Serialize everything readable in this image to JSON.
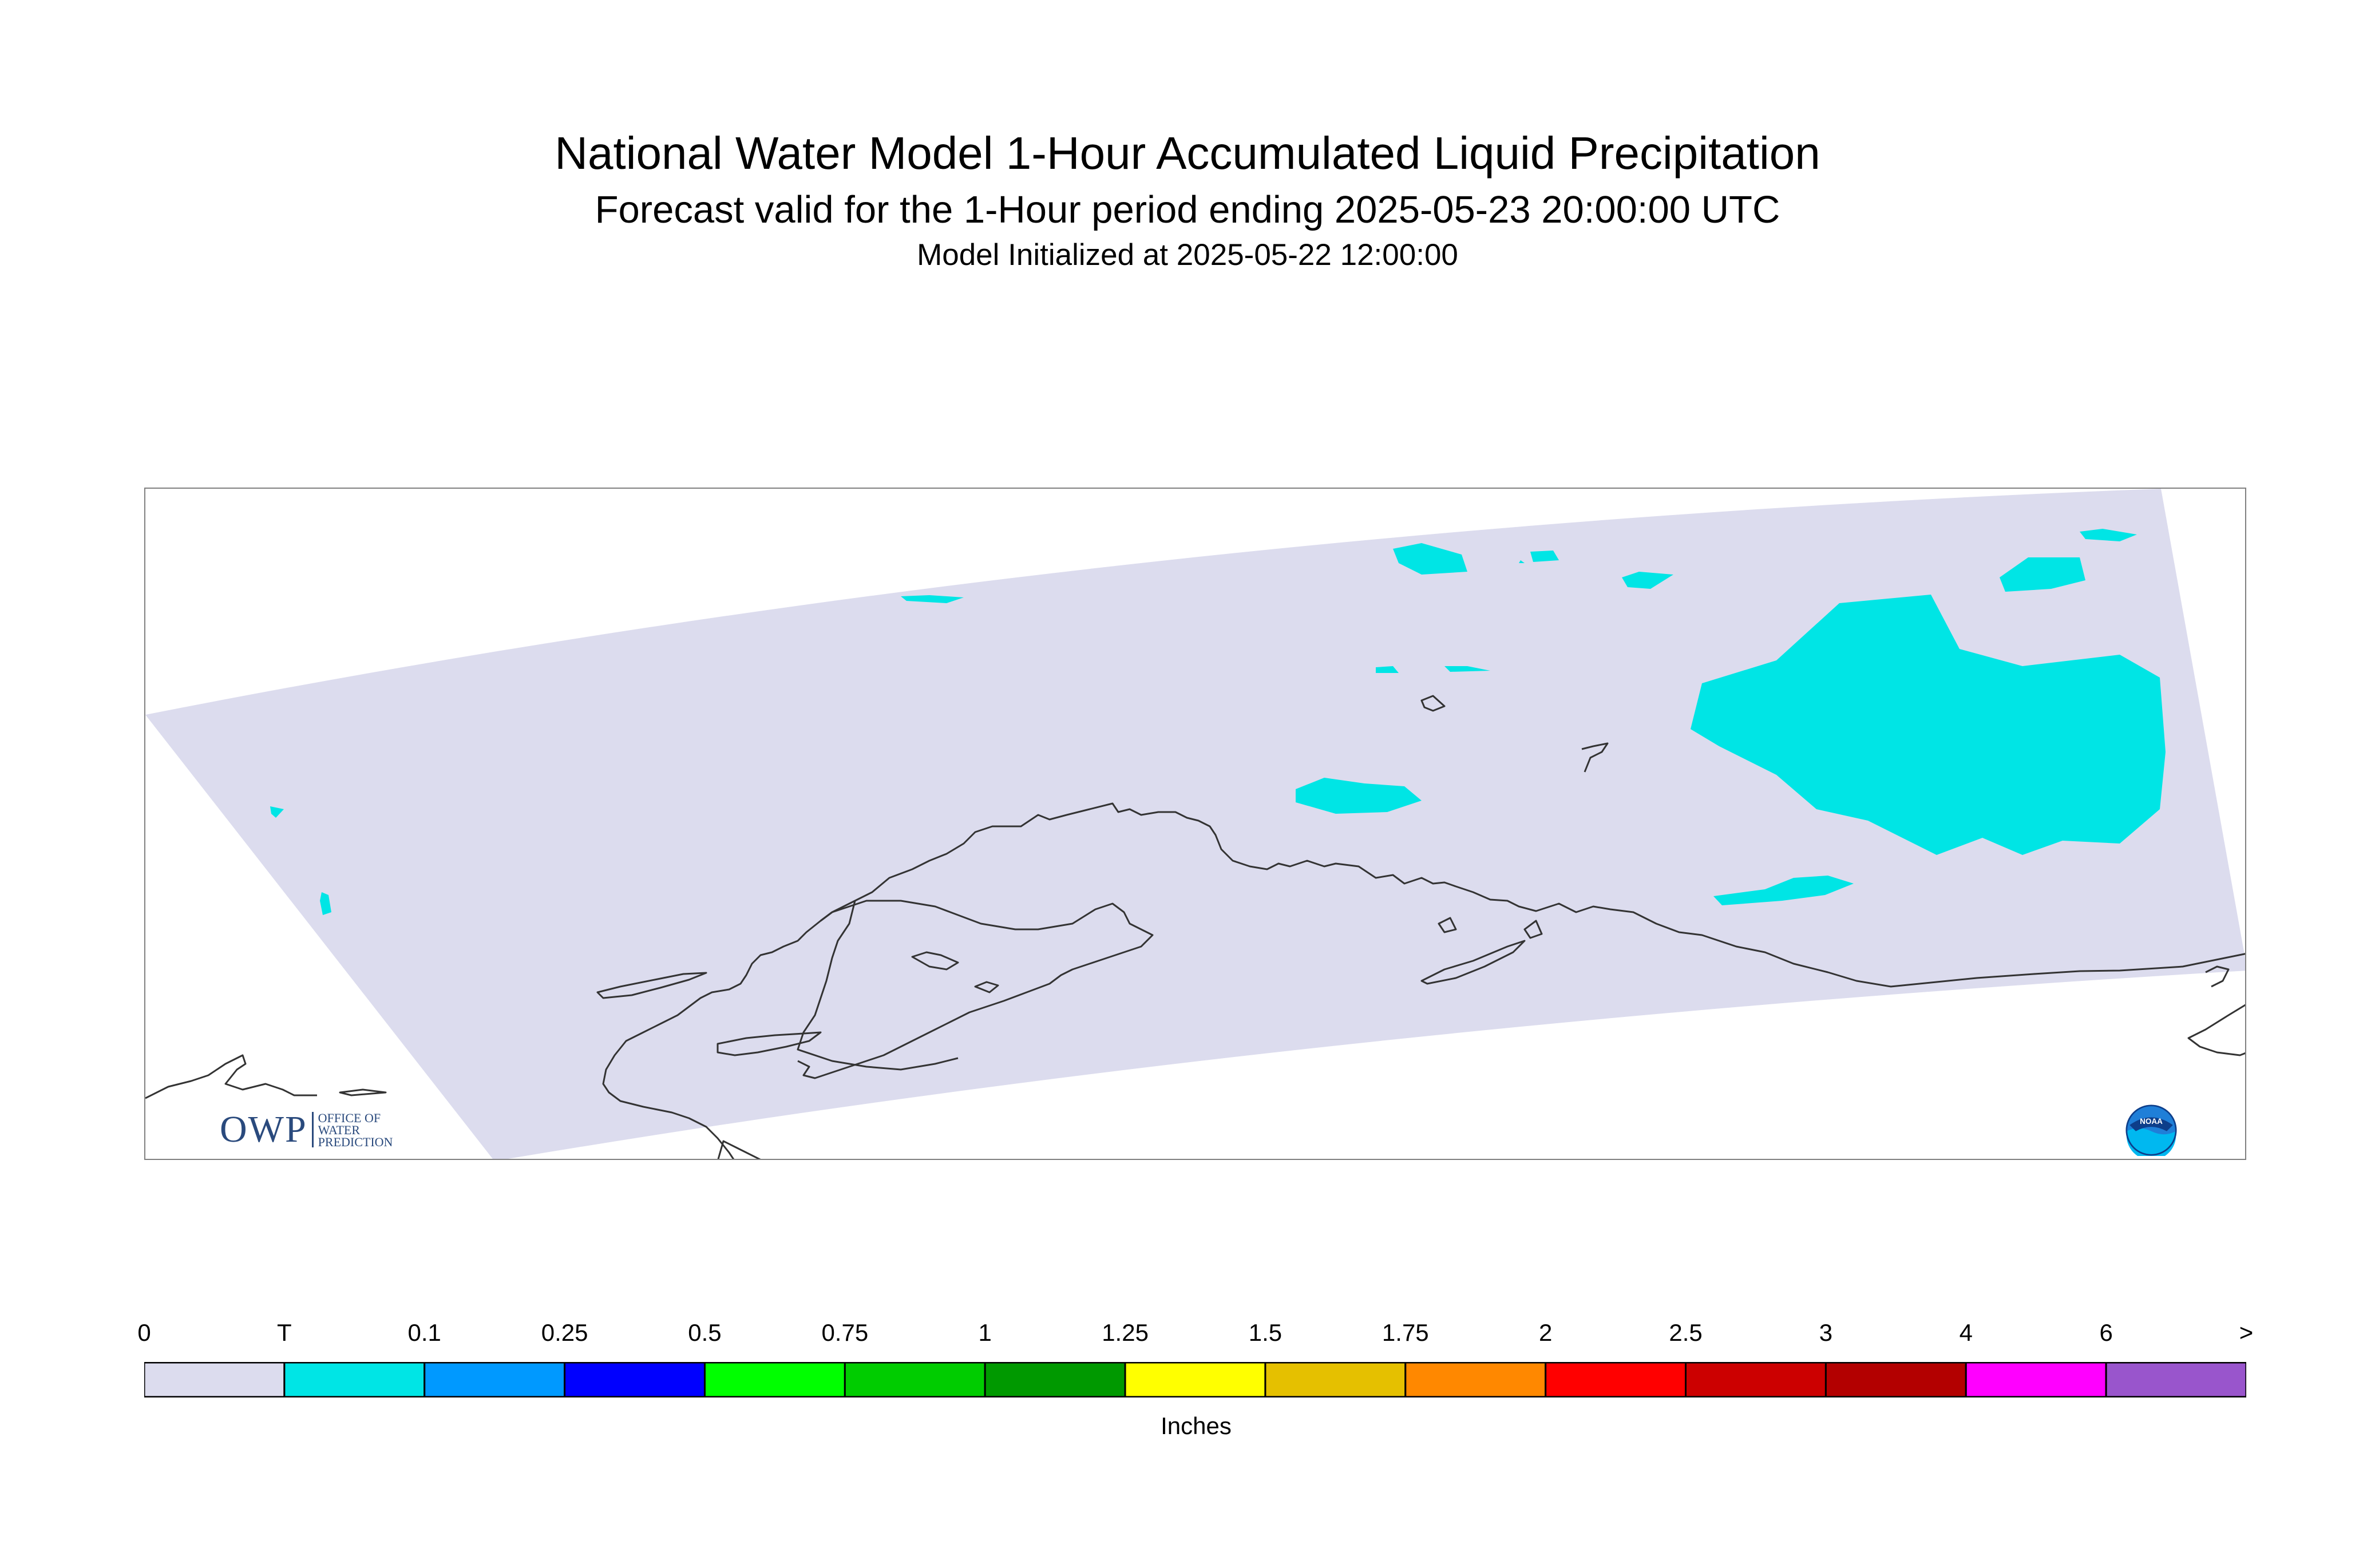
{
  "header": {
    "title": "National Water Model 1-Hour Accumulated Liquid Precipitation",
    "subtitle": "Forecast valid for the 1-Hour period ending 2025-05-23 20:00:00 UTC",
    "init_line": "Model Initialized at 2025-05-22 12:00:00"
  },
  "legend": {
    "units": "Inches",
    "ticks": [
      "0",
      "T",
      "0.1",
      "0.25",
      "0.5",
      "0.75",
      "1",
      "1.25",
      "1.5",
      "1.75",
      "2",
      "2.5",
      "3",
      "4",
      "6",
      ">"
    ],
    "colors": [
      "#dcdcee",
      "#00e5e5",
      "#0099ff",
      "#0000ff",
      "#00ff00",
      "#00cc00",
      "#009900",
      "#ffff00",
      "#e5c000",
      "#ff8800",
      "#ff0000",
      "#cc0000",
      "#b30000",
      "#ff00ff",
      "#9955cc"
    ]
  },
  "map": {
    "domain_fill": "#dcdcee",
    "precip_color": "#00e5e5",
    "coastline_color": "#333333"
  },
  "logos": {
    "owp_mark": "OWP",
    "owp_text": [
      "OFFICE OF",
      "WATER",
      "PREDICTION"
    ],
    "noaa_text": "NOAA"
  }
}
